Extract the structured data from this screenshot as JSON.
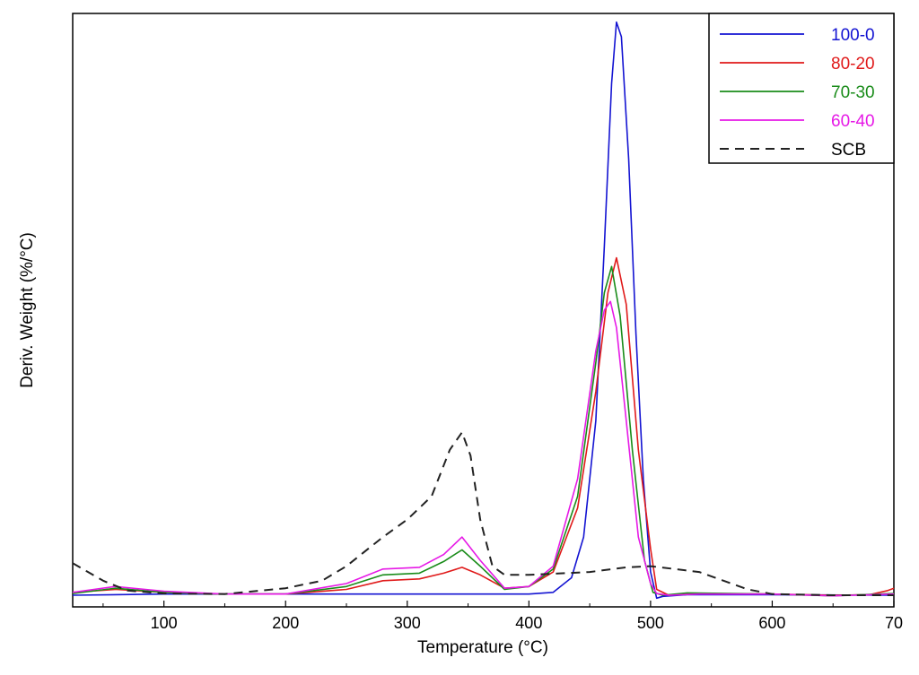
{
  "chart_data": {
    "type": "line",
    "xlabel": "Temperature (°C)",
    "ylabel": "Deriv. Weight (%/°C)",
    "xlim": [
      25,
      700
    ],
    "ylim": [
      -0.02,
      1.0
    ],
    "xticks": [
      "100",
      "200",
      "300",
      "400",
      "500",
      "600",
      "70"
    ],
    "y_tick_labels_shown": false,
    "grid": false,
    "legend_position": "top-right",
    "series": [
      {
        "name": "100-0",
        "color": "#1414d2",
        "dash": "solid",
        "x": [
          25,
          100,
          200,
          300,
          400,
          420,
          435,
          445,
          455,
          462,
          468,
          472,
          476,
          482,
          488,
          494,
          500,
          505,
          510,
          530,
          600,
          700
        ],
        "y": [
          0.0,
          0.002,
          0.002,
          0.002,
          0.002,
          0.005,
          0.03,
          0.1,
          0.3,
          0.6,
          0.88,
          0.985,
          0.96,
          0.75,
          0.45,
          0.2,
          0.04,
          -0.005,
          -0.002,
          0.001,
          0.001,
          0.0
        ]
      },
      {
        "name": "80-20",
        "color": "#e01a1a",
        "dash": "solid",
        "x": [
          25,
          60,
          100,
          150,
          200,
          250,
          280,
          310,
          330,
          345,
          360,
          380,
          400,
          420,
          440,
          455,
          465,
          472,
          480,
          490,
          500,
          505,
          515,
          540,
          600,
          650,
          680,
          695,
          700
        ],
        "y": [
          0.005,
          0.01,
          0.005,
          0.002,
          0.002,
          0.01,
          0.025,
          0.028,
          0.038,
          0.048,
          0.035,
          0.012,
          0.015,
          0.04,
          0.15,
          0.35,
          0.52,
          0.58,
          0.5,
          0.25,
          0.08,
          0.01,
          0.0,
          0.003,
          0.002,
          0.0,
          0.001,
          0.008,
          0.012
        ]
      },
      {
        "name": "70-30",
        "color": "#1a8c1a",
        "dash": "solid",
        "x": [
          25,
          60,
          100,
          150,
          200,
          250,
          280,
          310,
          330,
          345,
          360,
          380,
          400,
          420,
          440,
          455,
          462,
          468,
          475,
          485,
          495,
          502,
          510,
          530,
          600,
          650,
          700
        ],
        "y": [
          0.003,
          0.012,
          0.005,
          0.002,
          0.002,
          0.015,
          0.035,
          0.038,
          0.058,
          0.078,
          0.05,
          0.01,
          0.015,
          0.045,
          0.17,
          0.4,
          0.52,
          0.565,
          0.48,
          0.25,
          0.06,
          0.005,
          0.0,
          0.004,
          0.002,
          -0.001,
          0.003
        ]
      },
      {
        "name": "60-40",
        "color": "#e619e6",
        "dash": "solid",
        "x": [
          25,
          60,
          100,
          150,
          200,
          250,
          280,
          310,
          330,
          345,
          360,
          380,
          400,
          420,
          440,
          455,
          462,
          467,
          472,
          480,
          490,
          500,
          505,
          515,
          540,
          600,
          650,
          700
        ],
        "y": [
          0.005,
          0.015,
          0.007,
          0.002,
          0.002,
          0.02,
          0.045,
          0.048,
          0.07,
          0.1,
          0.06,
          0.012,
          0.015,
          0.05,
          0.2,
          0.42,
          0.49,
          0.505,
          0.46,
          0.3,
          0.1,
          0.02,
          0.003,
          0.0,
          0.002,
          0.002,
          -0.001,
          0.002
        ]
      },
      {
        "name": "SCB",
        "color": "#222222",
        "dash": "dashed",
        "x": [
          25,
          50,
          70,
          100,
          150,
          200,
          230,
          250,
          280,
          300,
          320,
          335,
          345,
          352,
          360,
          370,
          380,
          400,
          450,
          480,
          500,
          520,
          540,
          560,
          580,
          600,
          650,
          700
        ],
        "y": [
          0.055,
          0.025,
          0.008,
          0.003,
          0.002,
          0.012,
          0.025,
          0.05,
          0.1,
          0.13,
          0.17,
          0.25,
          0.28,
          0.24,
          0.13,
          0.05,
          0.035,
          0.035,
          0.04,
          0.048,
          0.05,
          0.045,
          0.04,
          0.025,
          0.01,
          0.002,
          0.0,
          0.0
        ]
      }
    ]
  }
}
